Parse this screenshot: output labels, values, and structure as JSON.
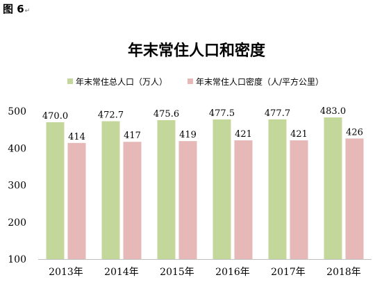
{
  "figure_label": "图 6",
  "figure_label_mark": "↵",
  "chart_data": {
    "type": "bar",
    "title": "年末常住人口和密度",
    "categories": [
      "2013年",
      "2014年",
      "2015年",
      "2016年",
      "2017年",
      "2018年"
    ],
    "series": [
      {
        "name": "年末常住总人口（万人）",
        "color": "#c3d79b",
        "values": [
          470.0,
          472.7,
          475.6,
          477.5,
          477.7,
          483.0
        ],
        "labels": [
          "470.0",
          "472.7",
          "475.6",
          "477.5",
          "477.7",
          "483.0"
        ]
      },
      {
        "name": "年末常住人口密度（人/平方公里）",
        "color": "#e6b8b7",
        "values": [
          414,
          417,
          419,
          421,
          421,
          426
        ],
        "labels": [
          "414",
          "417",
          "419",
          "421",
          "421",
          "426"
        ]
      }
    ],
    "ylim": [
      100,
      500
    ],
    "yticks": [
      100,
      200,
      300,
      400,
      500
    ],
    "xlabel": "",
    "ylabel": "",
    "grid": false,
    "legend_position": "top"
  }
}
